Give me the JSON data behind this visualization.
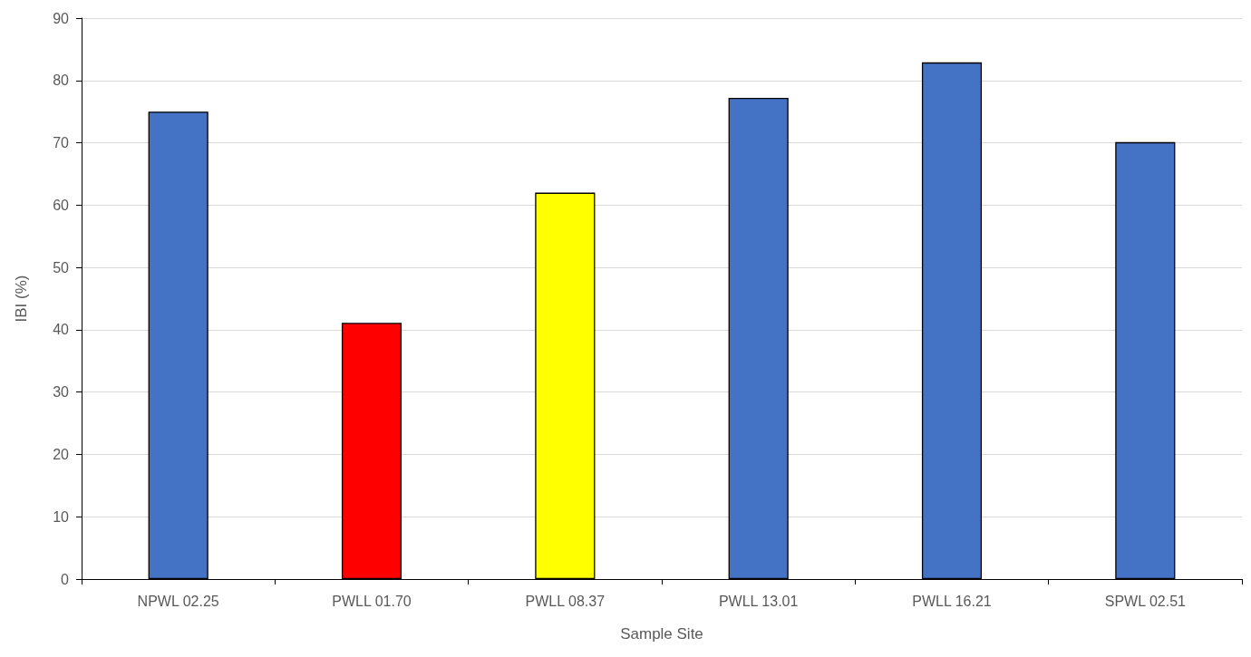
{
  "chart_data": {
    "type": "bar",
    "xlabel": "Sample Site",
    "ylabel": "IBI (%)",
    "categories": [
      "NPWL 02.25",
      "PWLL 01.70",
      "PWLL 08.37",
      "PWLL 13.01",
      "PWLL 16.21",
      "SPWL 02.51"
    ],
    "values": [
      75,
      41.1,
      62,
      77.2,
      82.9,
      70.1
    ],
    "colors": [
      "#4472c4",
      "#ff0000",
      "#ffff00",
      "#4472c4",
      "#4472c4",
      "#4472c4"
    ],
    "ylim": [
      0,
      90
    ],
    "yticks": [
      0,
      10,
      20,
      30,
      40,
      50,
      60,
      70,
      80,
      90
    ],
    "grid": "y"
  }
}
